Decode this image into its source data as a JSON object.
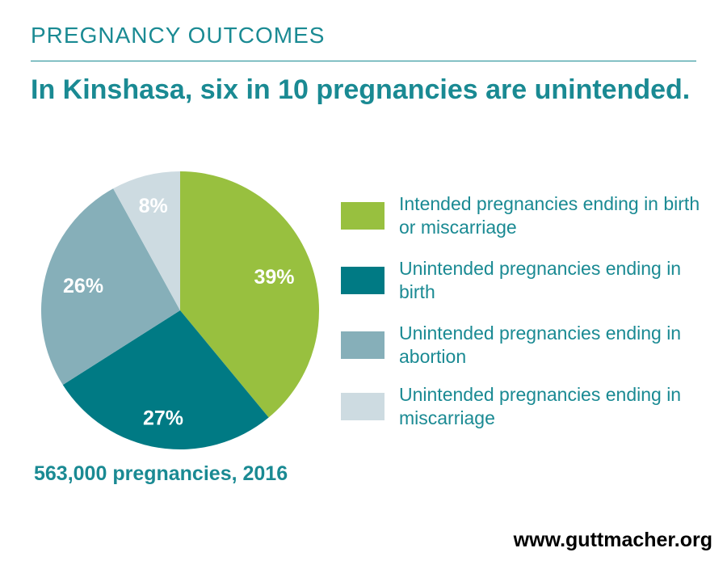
{
  "header": {
    "kicker": "PREGNANCY OUTCOMES",
    "headline": "In Kinshasa, six in 10 pregnancies are unintended."
  },
  "chart_data": {
    "type": "pie",
    "slices": [
      {
        "label": "Intended pregnancies ending in birth or miscarriage",
        "value": 39,
        "display": "39%",
        "color": "#98c03f"
      },
      {
        "label": "Unintended pregnancies ending in birth",
        "value": 27,
        "display": "27%",
        "color": "#007a84"
      },
      {
        "label": "Unintended pregnancies ending in abortion",
        "value": 26,
        "display": "26%",
        "color": "#86afb9"
      },
      {
        "label": "Unintended pregnancies ending in miscarriage",
        "value": 8,
        "display": "8%",
        "color": "#cddbe1"
      }
    ],
    "legend": "right"
  },
  "footnote": "563,000 pregnancies, 2016",
  "source": "www.guttmacher.org"
}
